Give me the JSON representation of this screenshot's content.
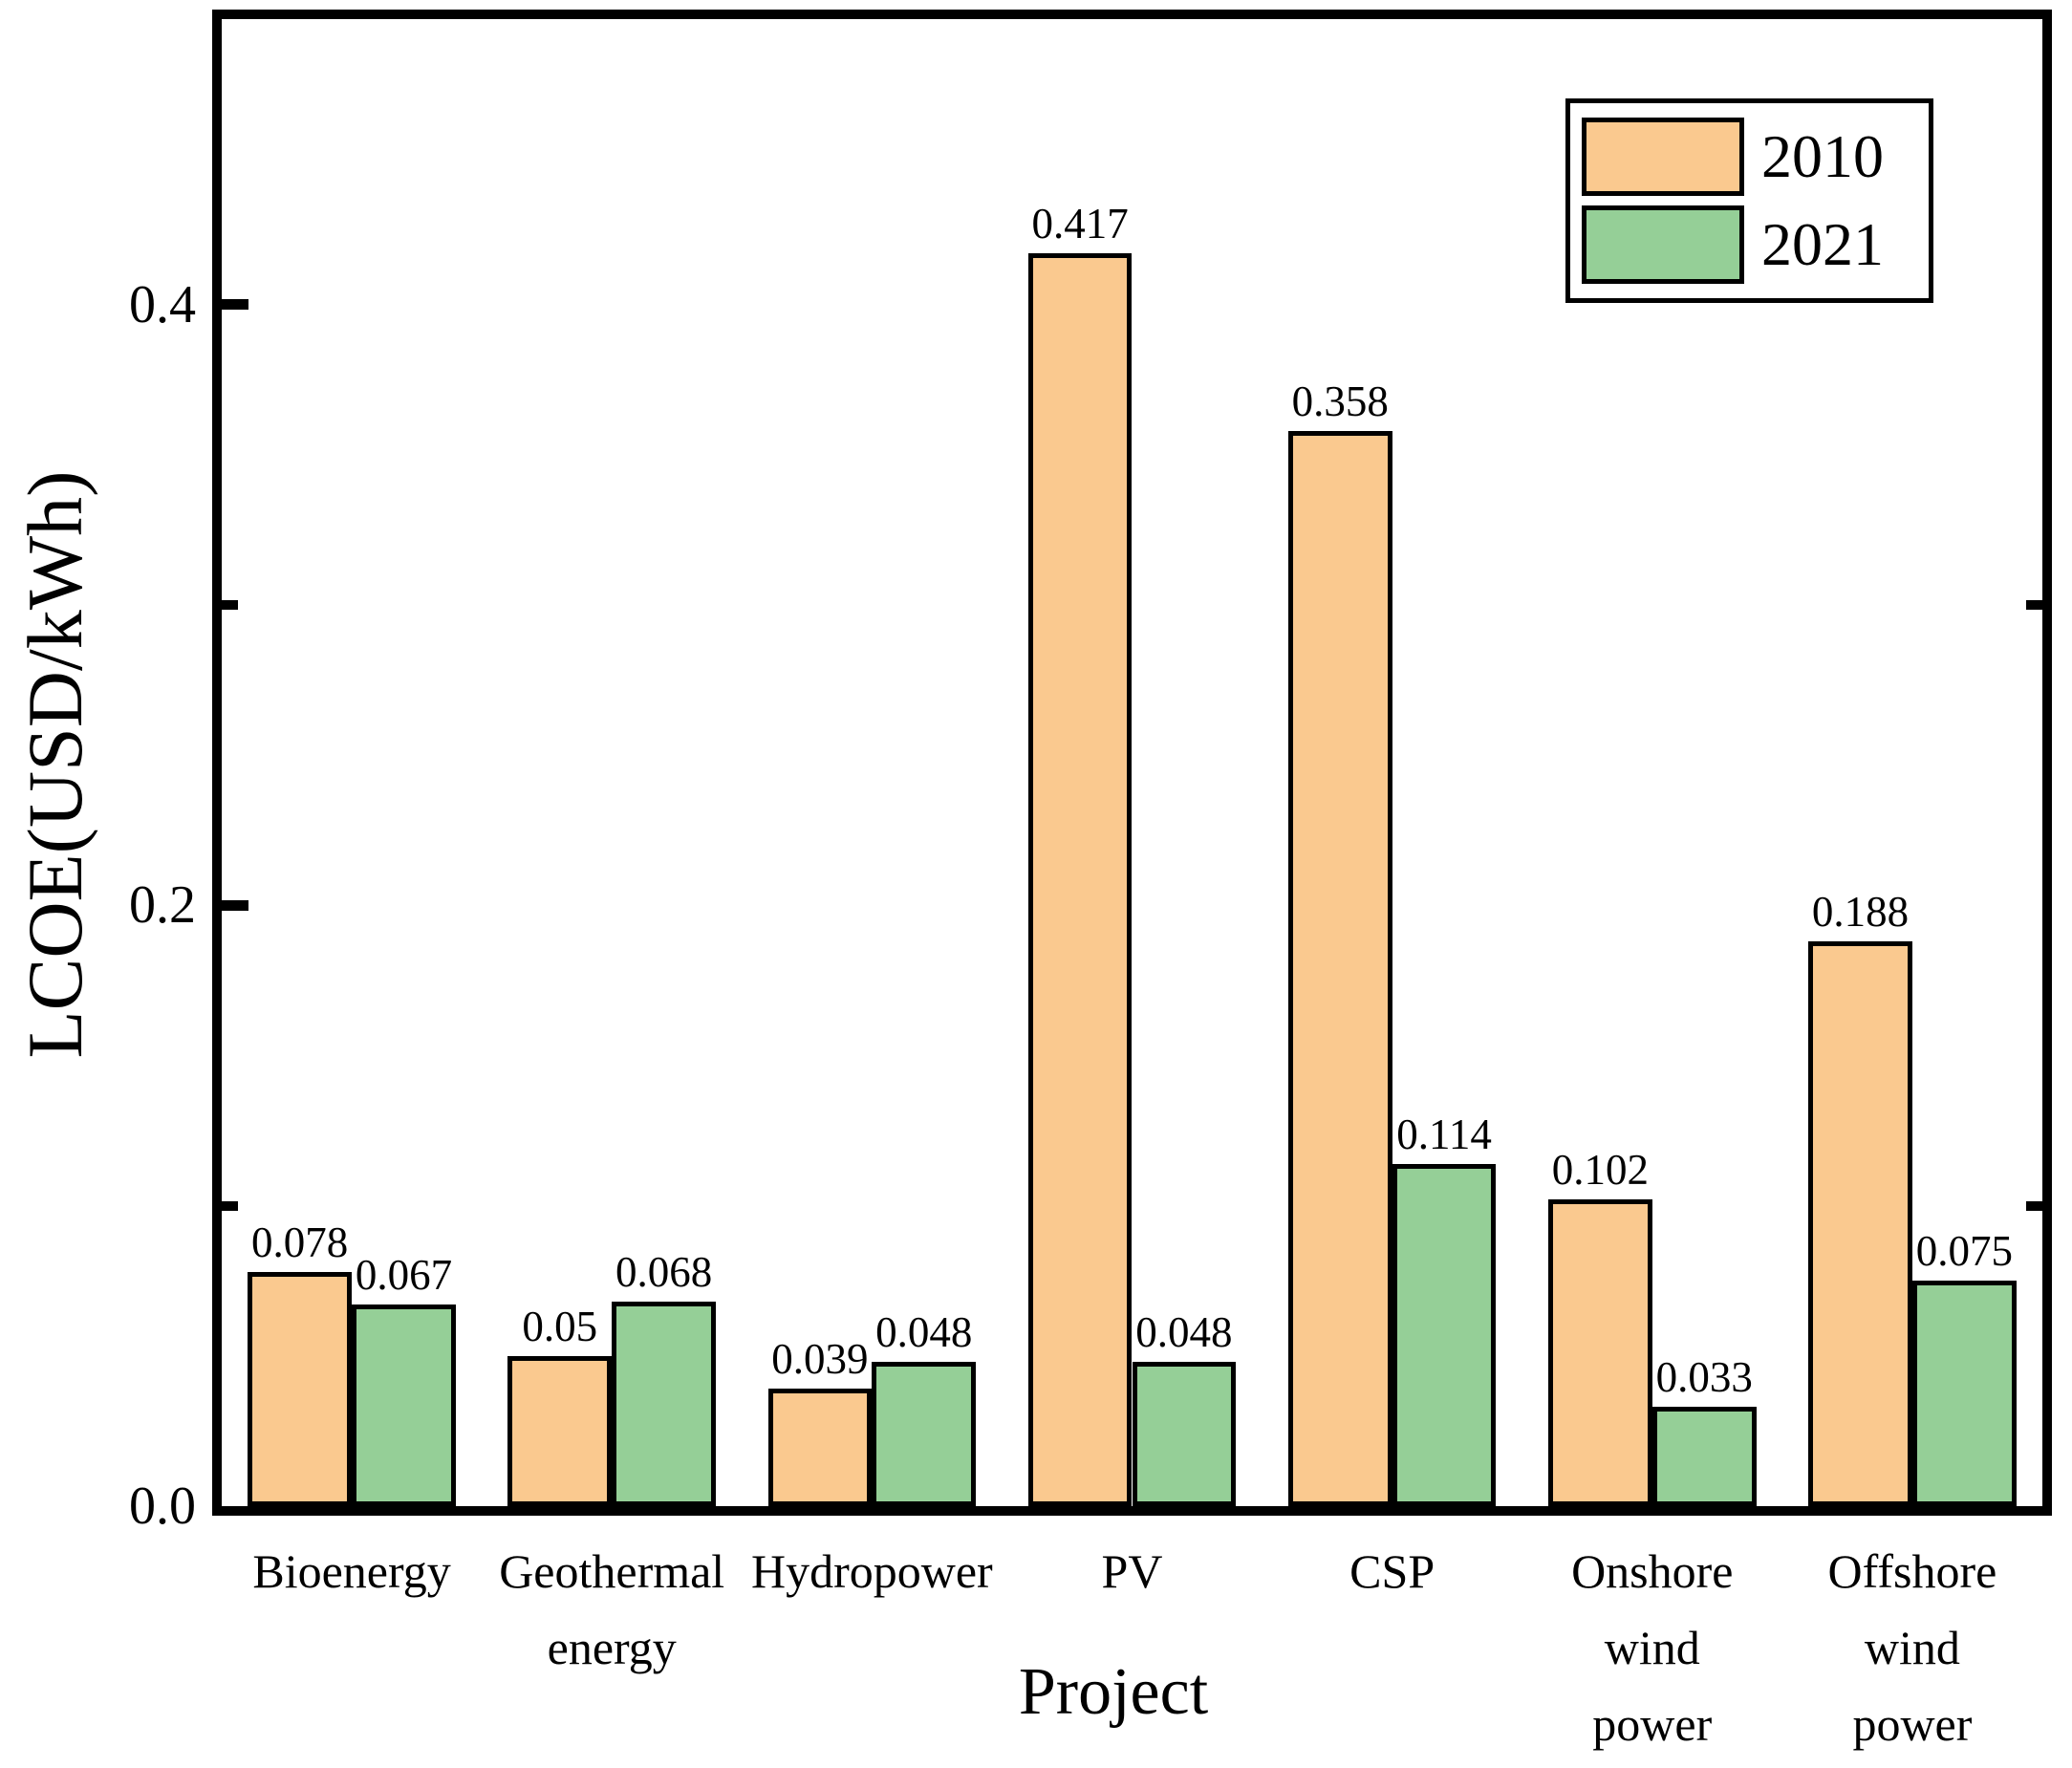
{
  "chart_data": {
    "type": "bar",
    "title": "",
    "xlabel": "Project",
    "ylabel": "LCOE(USD/kWh)",
    "categories": [
      "Bioenergy",
      "Geothermal energy",
      "Hydropower",
      "PV",
      "CSP",
      "Onshore wind power",
      "Offshore wind power"
    ],
    "category_lines": [
      [
        "Bioenergy"
      ],
      [
        "Geothermal",
        "energy"
      ],
      [
        "Hydropower"
      ],
      [
        "PV"
      ],
      [
        "CSP"
      ],
      [
        "Onshore",
        "wind",
        "power"
      ],
      [
        "Offshore",
        "wind",
        "power"
      ]
    ],
    "series": [
      {
        "name": "2010",
        "color": "#FAC98F",
        "values": [
          0.078,
          0.05,
          0.039,
          0.417,
          0.358,
          0.102,
          0.188
        ]
      },
      {
        "name": "2021",
        "color": "#95CF97",
        "values": [
          0.067,
          0.068,
          0.048,
          0.048,
          0.114,
          0.033,
          0.075
        ]
      }
    ],
    "value_labels": [
      [
        "0.078",
        "0.05",
        "0.039",
        "0.417",
        "0.358",
        "0.102",
        "0.188"
      ],
      [
        "0.067",
        "0.068",
        "0.048",
        "0.048",
        "0.114",
        "0.033",
        "0.075"
      ]
    ],
    "ylim": [
      0,
      0.495
    ],
    "yticks_major": {
      "values": [
        0.0,
        0.2,
        0.4
      ],
      "labels": [
        "0.0",
        "0.2",
        "0.4"
      ]
    },
    "yticks_minor": [
      0.1,
      0.3
    ],
    "grid": false,
    "legend_position": "top-right",
    "bar_edge_color": "#000000",
    "background_color": "#FFFFFF",
    "text_color": "#000000"
  }
}
